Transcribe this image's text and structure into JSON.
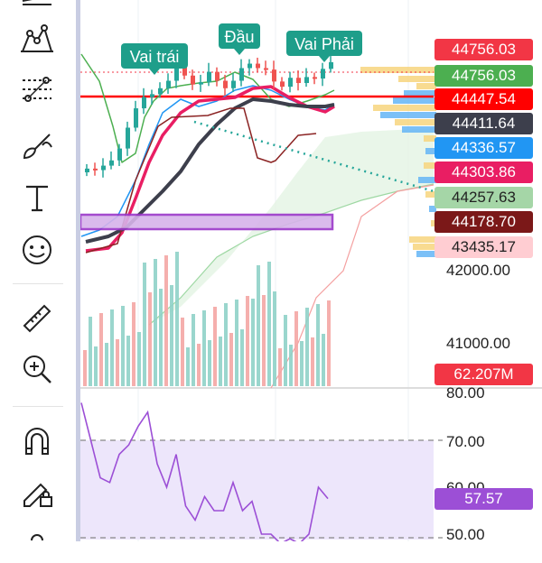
{
  "toolbar": {
    "tools": [
      "trend-line-icon",
      "pitchfork-icon",
      "fib-icon",
      "brush-icon",
      "text-icon",
      "emoji-icon",
      "ruler-icon",
      "zoom-in-icon",
      "magnet-icon",
      "lock-drawing-icon",
      "more-icon"
    ]
  },
  "annotations": {
    "left_shoulder": "Vai trái",
    "head": "Đầu",
    "right_shoulder": "Vai Phải"
  },
  "price_labels": [
    {
      "text": "44756.03",
      "color": "#f23645"
    },
    {
      "text": "44756.03",
      "color": "#4caf50"
    },
    {
      "text": "44447.54",
      "color": "#ff0000"
    },
    {
      "text": "44411.64",
      "color": "#3d3f4c"
    },
    {
      "text": "44336.57",
      "color": "#2196f3"
    },
    {
      "text": "44303.86",
      "color": "#e91e63"
    },
    {
      "text": "44257.63",
      "color": "#a5d6a7"
    },
    {
      "text": "44178.70",
      "color": "#7b1818"
    },
    {
      "text": "43435.17",
      "color": "#ffcdd2"
    }
  ],
  "axis": {
    "price_ticks": [
      "42000.00",
      "41000.00"
    ],
    "volume_label": "62.207M",
    "rsi_ticks": [
      "80.00",
      "70.00",
      "60.00",
      "50.00"
    ],
    "rsi_value": "57.57"
  },
  "colors": {
    "up": "#26a69a",
    "down": "#ef5350",
    "rsi": "#9c4fd6",
    "rsi_band": "#ede6fb"
  },
  "chart_data": {
    "type": "line",
    "series": [
      {
        "values": [
          43250,
          43230,
          43290,
          43360,
          43520,
          43800,
          44060,
          44210,
          44250,
          44330,
          44430,
          44650,
          44500,
          44380,
          44410,
          44550,
          44430,
          44330,
          44430,
          44600,
          44660,
          44600,
          44580,
          44420,
          44350,
          44470,
          44400,
          44480,
          44460,
          44590,
          44680
        ]
      },
      {
        "values": [
          78,
          70,
          62,
          61,
          67,
          69,
          73,
          76,
          65,
          60,
          67,
          56,
          53,
          58,
          55,
          55,
          61,
          55,
          57,
          50,
          50,
          48,
          49,
          48,
          50,
          60,
          57.57
        ]
      }
    ],
    "ylim": [
      40500,
      44950
    ]
  }
}
